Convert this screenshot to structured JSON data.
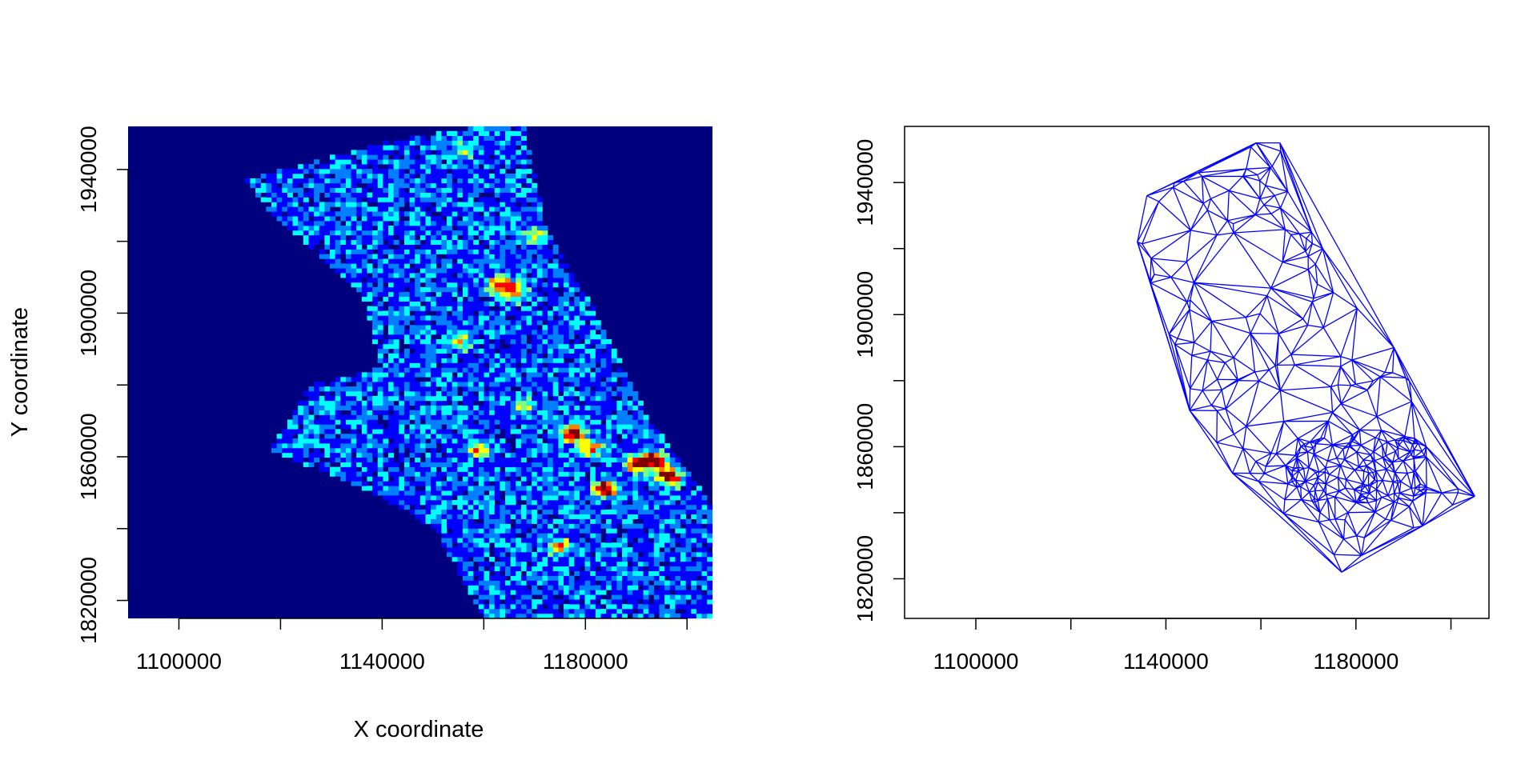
{
  "chart_data": [
    {
      "type": "heatmap",
      "title": "",
      "xlabel": "X coordinate",
      "ylabel": "Y coordinate",
      "xlim": [
        1090000,
        1205000
      ],
      "ylim": [
        1815000,
        1952000
      ],
      "x_ticks": [
        1100000,
        1120000,
        1140000,
        1160000,
        1180000,
        1200000
      ],
      "x_tick_labels": [
        "1100000",
        "",
        "1140000",
        "",
        "1180000",
        ""
      ],
      "y_ticks": [
        1820000,
        1840000,
        1860000,
        1880000,
        1900000,
        1920000,
        1940000
      ],
      "y_tick_labels": [
        "1820000",
        "",
        "1860000",
        "",
        "1900000",
        "",
        "1940000"
      ],
      "background_color": "#00007f",
      "colormap": [
        "#00007f",
        "#0000ff",
        "#007fff",
        "#00ffff",
        "#7fff7f",
        "#ffff00",
        "#ff7f00",
        "#ff0000",
        "#7f0000"
      ],
      "density_peaks": [
        {
          "x": 1163000,
          "y": 1908000,
          "intensity": 0.75
        },
        {
          "x": 1166000,
          "y": 1906000,
          "intensity": 0.65
        },
        {
          "x": 1155000,
          "y": 1892000,
          "intensity": 0.5
        },
        {
          "x": 1159000,
          "y": 1862000,
          "intensity": 0.55
        },
        {
          "x": 1177500,
          "y": 1866500,
          "intensity": 0.95
        },
        {
          "x": 1181000,
          "y": 1862000,
          "intensity": 0.6
        },
        {
          "x": 1184000,
          "y": 1851000,
          "intensity": 0.95
        },
        {
          "x": 1190000,
          "y": 1858000,
          "intensity": 0.9
        },
        {
          "x": 1193500,
          "y": 1859000,
          "intensity": 0.9
        },
        {
          "x": 1196500,
          "y": 1854500,
          "intensity": 1.0
        },
        {
          "x": 1175000,
          "y": 1835000,
          "intensity": 0.5
        },
        {
          "x": 1170000,
          "y": 1922000,
          "intensity": 0.45
        },
        {
          "x": 1156000,
          "y": 1945000,
          "intensity": 0.35
        },
        {
          "x": 1168000,
          "y": 1874000,
          "intensity": 0.4
        }
      ]
    },
    {
      "type": "scatter",
      "title": "",
      "xlabel": "",
      "ylabel": "",
      "xlim": [
        1085000,
        1208000
      ],
      "ylim": [
        1808000,
        1957000
      ],
      "x_ticks": [
        1100000,
        1120000,
        1140000,
        1160000,
        1180000,
        1200000
      ],
      "x_tick_labels": [
        "1100000",
        "",
        "1140000",
        "",
        "1180000",
        ""
      ],
      "y_ticks": [
        1820000,
        1840000,
        1860000,
        1880000,
        1900000,
        1920000,
        1940000
      ],
      "y_tick_labels": [
        "1820000",
        "",
        "1860000",
        "",
        "1900000",
        "",
        "1940000"
      ],
      "mesh_color": "#0000ff",
      "mesh": "delaunay triangulation",
      "hull": [
        [
          1159000,
          1952000
        ],
        [
          1164000,
          1952000
        ],
        [
          1173000,
          1920000
        ],
        [
          1188000,
          1890000
        ],
        [
          1205000,
          1845000
        ],
        [
          1194000,
          1836000
        ],
        [
          1177000,
          1822000
        ],
        [
          1154000,
          1852000
        ],
        [
          1145000,
          1871000
        ],
        [
          1134000,
          1922000
        ],
        [
          1136000,
          1936000
        ]
      ]
    }
  ]
}
